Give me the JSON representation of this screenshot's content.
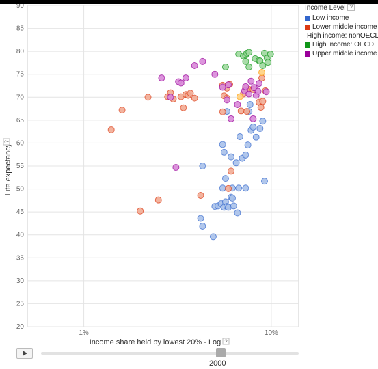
{
  "chart_data": {
    "type": "scatter",
    "title": "",
    "xlabel": "Income share held by lowest 20% - Log",
    "ylabel": "Life expectancy",
    "x_scale": "log",
    "xlim": [
      0.5,
      14
    ],
    "ylim": [
      20,
      90
    ],
    "x_ticks": [
      {
        "value": 1,
        "label": "1%"
      },
      {
        "value": 10,
        "label": "10%"
      }
    ],
    "y_ticks": [
      20,
      25,
      30,
      35,
      40,
      45,
      50,
      55,
      60,
      65,
      70,
      75,
      80,
      85,
      90
    ],
    "grid": true,
    "legend_title": "Income Level",
    "legend_position": "top-right",
    "series": [
      {
        "name": "Low income",
        "color": "#3366cc",
        "fill": "#a9c1ea",
        "points": [
          [
            4.3,
            55
          ],
          [
            4.2,
            43.6
          ],
          [
            4.3,
            41.9
          ],
          [
            4.9,
            39.6
          ],
          [
            5.0,
            46.2
          ],
          [
            5.2,
            46.3
          ],
          [
            5.4,
            46.8
          ],
          [
            5.6,
            46.0
          ],
          [
            5.7,
            47.2
          ],
          [
            5.8,
            46.2
          ],
          [
            5.9,
            46.0
          ],
          [
            6.1,
            48.2
          ],
          [
            6.2,
            48.0
          ],
          [
            6.3,
            46.3
          ],
          [
            5.5,
            50.2
          ],
          [
            5.7,
            52.3
          ],
          [
            6.2,
            50.2
          ],
          [
            6.7,
            50.2
          ],
          [
            7.3,
            50.2
          ],
          [
            6.6,
            44.8
          ],
          [
            5.6,
            58.0
          ],
          [
            5.5,
            59.7
          ],
          [
            6.1,
            57.0
          ],
          [
            6.5,
            55.7
          ],
          [
            7.0,
            56.7
          ],
          [
            7.3,
            57.4
          ],
          [
            7.5,
            59.6
          ],
          [
            6.8,
            61.4
          ],
          [
            7.8,
            62.8
          ],
          [
            8.0,
            63.5
          ],
          [
            8.3,
            61.3
          ],
          [
            8.7,
            63.2
          ],
          [
            9.0,
            64.8
          ],
          [
            7.7,
            68.4
          ],
          [
            7.6,
            66.9
          ],
          [
            9.2,
            51.7
          ],
          [
            5.8,
            66.9
          ]
        ]
      },
      {
        "name": "Lower middle income",
        "color": "#dc3912",
        "fill": "#f2ab94",
        "points": [
          [
            1.4,
            62.9
          ],
          [
            1.6,
            67.2
          ],
          [
            2.0,
            45.2
          ],
          [
            2.5,
            47.6
          ],
          [
            2.2,
            70.0
          ],
          [
            2.8,
            70.1
          ],
          [
            2.9,
            71.0
          ],
          [
            3.0,
            69.6
          ],
          [
            3.3,
            70.1
          ],
          [
            3.5,
            70.6
          ],
          [
            3.6,
            70.4
          ],
          [
            3.7,
            70.9
          ],
          [
            3.9,
            69.8
          ],
          [
            3.4,
            67.7
          ],
          [
            4.2,
            48.6
          ],
          [
            5.5,
            72.6
          ],
          [
            5.8,
            72.0
          ],
          [
            6.0,
            72.8
          ],
          [
            5.6,
            70.3
          ],
          [
            5.8,
            69.8
          ],
          [
            5.5,
            66.8
          ],
          [
            6.1,
            53.9
          ],
          [
            5.9,
            50.1
          ],
          [
            6.9,
            67.0
          ],
          [
            7.4,
            66.9
          ],
          [
            7.1,
            70.7
          ],
          [
            7.3,
            72.0
          ],
          [
            7.6,
            71.7
          ],
          [
            8.0,
            71.7
          ],
          [
            8.6,
            68.9
          ],
          [
            8.8,
            67.8
          ],
          [
            9.0,
            69.1
          ],
          [
            8.9,
            74.2
          ],
          [
            9.3,
            71.4
          ]
        ]
      },
      {
        "name": "High income: nonOECD",
        "color": "#ff9900",
        "fill": "#ffd080",
        "points": [
          [
            8.9,
            75.4
          ],
          [
            6.8,
            70.1
          ]
        ]
      },
      {
        "name": "High income: OECD",
        "color": "#109618",
        "fill": "#9ed89f",
        "points": [
          [
            6.7,
            79.4
          ],
          [
            7.1,
            79.0
          ],
          [
            7.3,
            79.2
          ],
          [
            7.4,
            79.6
          ],
          [
            7.6,
            79.8
          ],
          [
            7.3,
            77.8
          ],
          [
            7.6,
            76.6
          ],
          [
            8.2,
            78.4
          ],
          [
            8.6,
            78.0
          ],
          [
            8.7,
            77.9
          ],
          [
            9.2,
            79.6
          ],
          [
            9.5,
            78.5
          ],
          [
            9.6,
            77.6
          ],
          [
            9.9,
            79.4
          ],
          [
            5.7,
            76.6
          ],
          [
            9.0,
            76.9
          ]
        ]
      },
      {
        "name": "Upper middle income",
        "color": "#990099",
        "fill": "#d88ad8",
        "points": [
          [
            2.6,
            74.2
          ],
          [
            2.9,
            70.0
          ],
          [
            3.2,
            73.4
          ],
          [
            3.3,
            73.1
          ],
          [
            3.5,
            74.2
          ],
          [
            3.9,
            76.9
          ],
          [
            4.3,
            77.8
          ],
          [
            5.0,
            75.0
          ],
          [
            5.5,
            72.2
          ],
          [
            5.9,
            72.7
          ],
          [
            5.8,
            69.4
          ],
          [
            6.1,
            65.3
          ],
          [
            6.6,
            68.4
          ],
          [
            7.2,
            71.4
          ],
          [
            7.3,
            72.3
          ],
          [
            7.6,
            70.7
          ],
          [
            7.8,
            73.5
          ],
          [
            8.1,
            72.1
          ],
          [
            8.3,
            70.4
          ],
          [
            8.5,
            71.3
          ],
          [
            8.6,
            73.0
          ],
          [
            8.0,
            65.3
          ],
          [
            9.4,
            71.2
          ],
          [
            3.1,
            54.7
          ]
        ]
      }
    ]
  },
  "controls": {
    "year": "2000",
    "help_mark": "?"
  }
}
